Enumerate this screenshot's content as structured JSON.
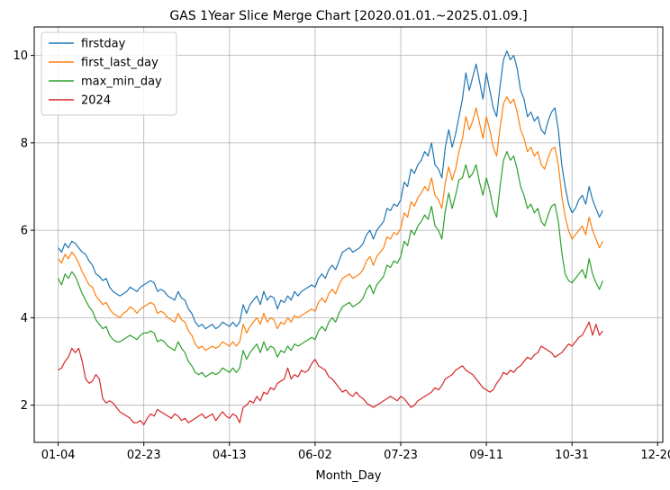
{
  "chart_data": {
    "type": "line",
    "title": "GAS 1Year Slice Merge Chart [2020.01.01.~2025.01.09.]",
    "xlabel": "Month_Day",
    "ylabel": "",
    "x_ticks": [
      "01-04",
      "02-23",
      "04-13",
      "06-02",
      "07-23",
      "09-11",
      "10-31",
      "12-20"
    ],
    "y_ticks": [
      2,
      4,
      6,
      8,
      10
    ],
    "xlim": [
      -14,
      353
    ],
    "ylim": [
      1.15,
      10.65
    ],
    "grid": true,
    "legend_position": "top-left",
    "x_step_days": 2,
    "series": [
      {
        "name": "firstday",
        "color": "#1f77b4",
        "values": [
          5.6,
          5.5,
          5.7,
          5.6,
          5.75,
          5.7,
          5.6,
          5.5,
          5.45,
          5.3,
          5.2,
          5.0,
          4.95,
          4.85,
          4.9,
          4.7,
          4.6,
          4.55,
          4.5,
          4.55,
          4.6,
          4.7,
          4.65,
          4.6,
          4.7,
          4.75,
          4.8,
          4.85,
          4.8,
          4.6,
          4.65,
          4.6,
          4.5,
          4.45,
          4.4,
          4.6,
          4.45,
          4.4,
          4.2,
          4.1,
          3.9,
          3.8,
          3.85,
          3.75,
          3.8,
          3.85,
          3.75,
          3.8,
          3.9,
          3.85,
          3.8,
          3.9,
          3.8,
          3.9,
          4.3,
          4.1,
          4.3,
          4.4,
          4.5,
          4.3,
          4.6,
          4.4,
          4.5,
          4.45,
          4.2,
          4.4,
          4.35,
          4.5,
          4.4,
          4.6,
          4.5,
          4.6,
          4.65,
          4.7,
          4.75,
          4.7,
          4.9,
          5.0,
          4.9,
          5.1,
          5.2,
          5.1,
          5.3,
          5.5,
          5.55,
          5.6,
          5.5,
          5.55,
          5.6,
          5.7,
          5.9,
          6.0,
          5.8,
          6.0,
          6.1,
          6.2,
          6.5,
          6.45,
          6.6,
          6.55,
          6.7,
          7.1,
          7.0,
          7.4,
          7.3,
          7.5,
          7.6,
          7.8,
          7.7,
          8.0,
          7.5,
          7.4,
          7.2,
          7.9,
          8.3,
          7.9,
          8.2,
          8.6,
          9.0,
          9.6,
          9.2,
          9.5,
          9.8,
          9.4,
          9.0,
          9.6,
          9.2,
          8.8,
          8.6,
          9.3,
          9.9,
          10.1,
          9.9,
          10.0,
          9.7,
          9.2,
          9.0,
          8.6,
          8.7,
          8.5,
          8.6,
          8.3,
          8.2,
          8.5,
          8.7,
          8.8,
          8.3,
          7.5,
          7.0,
          6.6,
          6.4,
          6.5,
          6.7,
          6.8,
          6.6,
          7.0,
          6.7,
          6.5,
          6.3,
          6.45
        ]
      },
      {
        "name": "first_last_day",
        "color": "#ff7f0e",
        "values": [
          5.35,
          5.25,
          5.45,
          5.35,
          5.5,
          5.4,
          5.25,
          5.05,
          4.9,
          4.75,
          4.7,
          4.5,
          4.4,
          4.3,
          4.35,
          4.2,
          4.1,
          4.05,
          4.0,
          4.1,
          4.15,
          4.25,
          4.2,
          4.1,
          4.2,
          4.25,
          4.3,
          4.35,
          4.3,
          4.1,
          4.15,
          4.1,
          4.0,
          3.95,
          3.9,
          4.1,
          3.95,
          3.9,
          3.7,
          3.6,
          3.4,
          3.3,
          3.35,
          3.25,
          3.3,
          3.35,
          3.3,
          3.35,
          3.45,
          3.4,
          3.35,
          3.45,
          3.35,
          3.45,
          3.85,
          3.65,
          3.8,
          3.9,
          4.0,
          3.85,
          4.1,
          3.9,
          4.0,
          3.95,
          3.75,
          3.9,
          3.85,
          4.0,
          3.9,
          4.05,
          4.0,
          4.05,
          4.1,
          4.15,
          4.2,
          4.15,
          4.35,
          4.45,
          4.35,
          4.55,
          4.65,
          4.55,
          4.75,
          4.9,
          4.95,
          5.0,
          4.9,
          4.95,
          5.0,
          5.1,
          5.3,
          5.4,
          5.2,
          5.4,
          5.5,
          5.6,
          5.85,
          5.8,
          5.95,
          5.9,
          6.05,
          6.4,
          6.3,
          6.65,
          6.55,
          6.75,
          6.85,
          7.0,
          6.9,
          7.2,
          6.8,
          6.7,
          6.5,
          7.1,
          7.45,
          7.15,
          7.4,
          7.8,
          8.1,
          8.6,
          8.3,
          8.5,
          8.8,
          8.45,
          8.1,
          8.6,
          8.3,
          7.9,
          7.7,
          8.35,
          8.9,
          9.05,
          8.9,
          9.0,
          8.7,
          8.3,
          8.1,
          7.8,
          7.9,
          7.7,
          7.8,
          7.5,
          7.4,
          7.65,
          7.85,
          7.9,
          7.5,
          6.8,
          6.3,
          6.0,
          5.8,
          5.9,
          6.0,
          6.1,
          5.9,
          6.3,
          6.0,
          5.8,
          5.6,
          5.75
        ]
      },
      {
        "name": "max_min_day",
        "color": "#2ca02c",
        "values": [
          4.9,
          4.75,
          5.0,
          4.9,
          5.05,
          4.95,
          4.75,
          4.55,
          4.4,
          4.25,
          4.15,
          3.95,
          3.85,
          3.75,
          3.8,
          3.6,
          3.5,
          3.45,
          3.45,
          3.5,
          3.55,
          3.6,
          3.55,
          3.5,
          3.6,
          3.65,
          3.65,
          3.7,
          3.65,
          3.45,
          3.5,
          3.45,
          3.35,
          3.3,
          3.25,
          3.45,
          3.3,
          3.2,
          3.0,
          2.9,
          2.75,
          2.7,
          2.75,
          2.65,
          2.7,
          2.75,
          2.7,
          2.75,
          2.85,
          2.8,
          2.75,
          2.85,
          2.75,
          2.85,
          3.25,
          3.05,
          3.2,
          3.3,
          3.4,
          3.2,
          3.45,
          3.25,
          3.35,
          3.3,
          3.1,
          3.25,
          3.2,
          3.35,
          3.25,
          3.4,
          3.35,
          3.4,
          3.45,
          3.5,
          3.55,
          3.5,
          3.7,
          3.8,
          3.7,
          3.9,
          4.0,
          3.9,
          4.1,
          4.25,
          4.3,
          4.35,
          4.25,
          4.3,
          4.35,
          4.45,
          4.65,
          4.75,
          4.55,
          4.75,
          4.85,
          4.95,
          5.2,
          5.15,
          5.3,
          5.25,
          5.4,
          5.75,
          5.65,
          6.0,
          5.9,
          6.1,
          6.2,
          6.35,
          6.25,
          6.55,
          6.1,
          6.0,
          5.8,
          6.45,
          6.85,
          6.5,
          6.8,
          7.15,
          7.2,
          7.5,
          7.2,
          7.3,
          7.5,
          7.1,
          6.8,
          7.2,
          6.9,
          6.5,
          6.3,
          7.0,
          7.6,
          7.8,
          7.6,
          7.7,
          7.4,
          7.0,
          6.8,
          6.5,
          6.6,
          6.4,
          6.5,
          6.2,
          6.1,
          6.35,
          6.55,
          6.6,
          6.2,
          5.5,
          5.0,
          4.85,
          4.8,
          4.9,
          5.0,
          5.1,
          4.9,
          5.35,
          5.0,
          4.8,
          4.65,
          4.85
        ]
      },
      {
        "name": "2024",
        "color": "#d62728",
        "values": [
          2.8,
          2.85,
          3.0,
          3.1,
          3.3,
          3.2,
          3.3,
          3.0,
          2.6,
          2.5,
          2.55,
          2.7,
          2.6,
          2.15,
          2.05,
          2.1,
          2.05,
          1.95,
          1.85,
          1.8,
          1.75,
          1.7,
          1.6,
          1.6,
          1.65,
          1.55,
          1.7,
          1.8,
          1.75,
          1.9,
          1.85,
          1.8,
          1.75,
          1.7,
          1.8,
          1.75,
          1.65,
          1.7,
          1.6,
          1.65,
          1.7,
          1.75,
          1.8,
          1.7,
          1.75,
          1.8,
          1.65,
          1.75,
          1.85,
          1.75,
          1.7,
          1.8,
          1.75,
          1.6,
          1.95,
          2.0,
          2.1,
          2.05,
          2.2,
          2.1,
          2.3,
          2.25,
          2.4,
          2.35,
          2.5,
          2.55,
          2.6,
          2.85,
          2.6,
          2.7,
          2.65,
          2.8,
          2.75,
          2.8,
          2.95,
          3.05,
          2.9,
          2.85,
          2.8,
          2.65,
          2.6,
          2.5,
          2.4,
          2.3,
          2.35,
          2.25,
          2.2,
          2.3,
          2.2,
          2.15,
          2.05,
          2.0,
          1.95,
          2.0,
          2.05,
          2.1,
          2.15,
          2.2,
          2.15,
          2.1,
          2.2,
          2.15,
          2.05,
          1.95,
          2.0,
          2.1,
          2.15,
          2.2,
          2.25,
          2.3,
          2.4,
          2.35,
          2.45,
          2.6,
          2.65,
          2.7,
          2.8,
          2.85,
          2.9,
          2.8,
          2.75,
          2.7,
          2.6,
          2.5,
          2.4,
          2.35,
          2.3,
          2.35,
          2.5,
          2.6,
          2.75,
          2.7,
          2.8,
          2.75,
          2.85,
          2.9,
          3.0,
          3.1,
          3.05,
          3.15,
          3.2,
          3.35,
          3.3,
          3.25,
          3.2,
          3.1,
          3.15,
          3.2,
          3.3,
          3.4,
          3.35,
          3.45,
          3.55,
          3.6,
          3.75,
          3.9,
          3.6,
          3.85,
          3.6,
          3.7
        ]
      }
    ]
  }
}
